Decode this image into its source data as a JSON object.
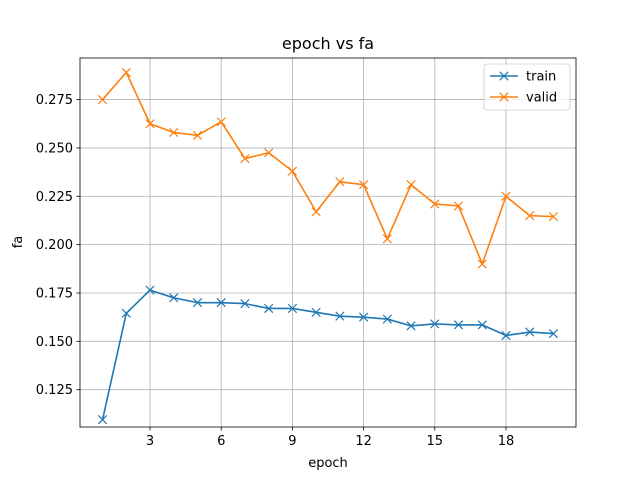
{
  "chart_data": {
    "type": "line",
    "title": "epoch vs fa",
    "xlabel": "epoch",
    "ylabel": "fa",
    "xlim": [
      0.05,
      20.95
    ],
    "ylim": [
      0.1057,
      0.2965
    ],
    "xticks": [
      3,
      6,
      9,
      12,
      15,
      18
    ],
    "yticks": [
      0.125,
      0.15,
      0.175,
      0.2,
      0.225,
      0.25,
      0.275
    ],
    "ytick_labels": [
      "0.125",
      "0.150",
      "0.175",
      "0.200",
      "0.225",
      "0.250",
      "0.275"
    ],
    "grid": true,
    "legend_position": "upper right",
    "x": [
      1,
      2,
      3,
      4,
      5,
      6,
      7,
      8,
      9,
      10,
      11,
      12,
      13,
      14,
      15,
      16,
      17,
      18,
      19,
      20
    ],
    "series": [
      {
        "name": "train",
        "color": "#1f77b4",
        "marker": "x",
        "values": [
          0.1095,
          0.1645,
          0.1765,
          0.1725,
          0.17,
          0.17,
          0.1695,
          0.167,
          0.167,
          0.165,
          0.163,
          0.1625,
          0.1615,
          0.158,
          0.159,
          0.1585,
          0.1585,
          0.153,
          0.1548,
          0.154
        ]
      },
      {
        "name": "valid",
        "color": "#ff7f0e",
        "marker": "x",
        "values": [
          0.275,
          0.289,
          0.2625,
          0.258,
          0.2565,
          0.2635,
          0.2445,
          0.2475,
          0.238,
          0.217,
          0.2325,
          0.231,
          0.203,
          0.231,
          0.221,
          0.22,
          0.19,
          0.225,
          0.215,
          0.2145
        ]
      }
    ]
  }
}
